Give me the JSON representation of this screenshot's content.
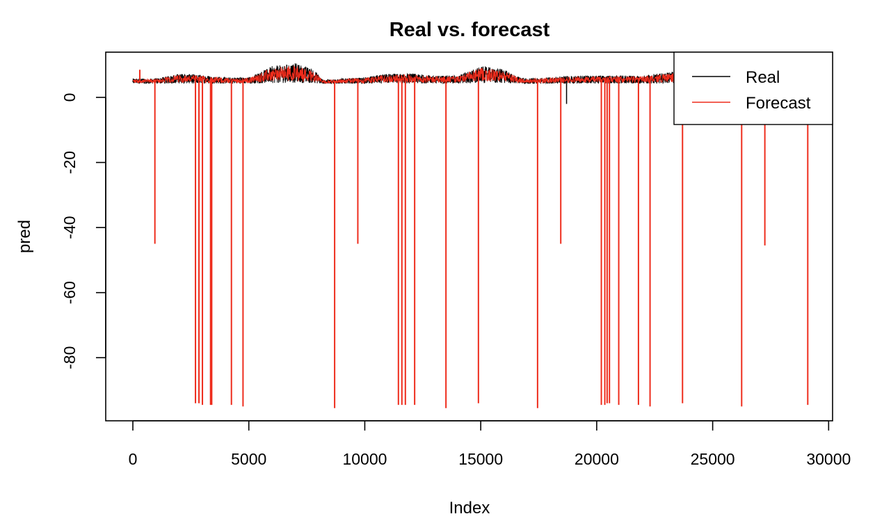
{
  "chart_data": {
    "type": "line",
    "title": "Real vs. forecast",
    "xlabel": "Index",
    "ylabel": "pred",
    "xlim": [
      -1170,
      30170
    ],
    "ylim": [
      -99.4,
      13.9
    ],
    "x_ticks": [
      0,
      5000,
      10000,
      15000,
      20000,
      25000,
      30000
    ],
    "x_tick_labels": [
      "0",
      "5000",
      "10000",
      "15000",
      "20000",
      "25000",
      "30000"
    ],
    "y_ticks": [
      0,
      -20,
      -40,
      -60,
      -80
    ],
    "y_tick_labels": [
      "0",
      "-20",
      "-40",
      "-60",
      "-80"
    ],
    "grid": false,
    "legend": {
      "position": "top-right",
      "entries": [
        "Real",
        "Forecast"
      ]
    },
    "series": [
      {
        "name": "Real",
        "color": "#000000",
        "x_start": 0,
        "x_end": 29100,
        "baseline_profile": [
          [
            0,
            5.0
          ],
          [
            1000,
            5.0
          ],
          [
            2000,
            5.8
          ],
          [
            3000,
            5.6
          ],
          [
            4000,
            5.2
          ],
          [
            5000,
            5.2
          ],
          [
            6000,
            7.0
          ],
          [
            7000,
            7.5
          ],
          [
            7800,
            6.5
          ],
          [
            8200,
            4.8
          ],
          [
            9000,
            5.0
          ],
          [
            10000,
            5.2
          ],
          [
            11000,
            5.8
          ],
          [
            12000,
            5.8
          ],
          [
            13000,
            5.5
          ],
          [
            14000,
            5.5
          ],
          [
            15000,
            7.0
          ],
          [
            16000,
            6.5
          ],
          [
            16500,
            5.5
          ],
          [
            17000,
            5.0
          ],
          [
            18000,
            5.2
          ],
          [
            19000,
            5.5
          ],
          [
            20000,
            5.5
          ],
          [
            21000,
            5.5
          ],
          [
            22000,
            5.5
          ],
          [
            23000,
            6.0
          ],
          [
            24000,
            6.5
          ],
          [
            25000,
            6.0
          ],
          [
            26000,
            5.5
          ],
          [
            27000,
            5.5
          ],
          [
            28000,
            5.5
          ],
          [
            29100,
            5.5
          ]
        ],
        "outliers": [
          {
            "x": 18700,
            "y": -2
          }
        ]
      },
      {
        "name": "Forecast",
        "color": "#ee2c1c",
        "spikes": [
          {
            "x": 950,
            "y": -45
          },
          {
            "x": 2700,
            "y": -94
          },
          {
            "x": 2850,
            "y": -94
          },
          {
            "x": 3000,
            "y": -94.5
          },
          {
            "x": 3350,
            "y": -94.5
          },
          {
            "x": 3400,
            "y": -94.5
          },
          {
            "x": 4250,
            "y": -94.5
          },
          {
            "x": 4750,
            "y": -95
          },
          {
            "x": 8700,
            "y": -95.5
          },
          {
            "x": 9700,
            "y": -45
          },
          {
            "x": 11450,
            "y": -94.5
          },
          {
            "x": 11600,
            "y": -94.5
          },
          {
            "x": 11750,
            "y": -94.5
          },
          {
            "x": 12150,
            "y": -94.5
          },
          {
            "x": 13500,
            "y": -95.5
          },
          {
            "x": 14900,
            "y": -94
          },
          {
            "x": 17450,
            "y": -95.5
          },
          {
            "x": 18450,
            "y": -45
          },
          {
            "x": 20200,
            "y": -94.5
          },
          {
            "x": 20350,
            "y": -94.5
          },
          {
            "x": 20450,
            "y": -94
          },
          {
            "x": 20550,
            "y": -94
          },
          {
            "x": 20950,
            "y": -94.5
          },
          {
            "x": 21800,
            "y": -94.5
          },
          {
            "x": 22300,
            "y": -95
          },
          {
            "x": 23700,
            "y": -94
          },
          {
            "x": 26250,
            "y": -95
          },
          {
            "x": 27250,
            "y": -45.5
          },
          {
            "x": 29100,
            "y": -94.5
          }
        ],
        "upward_spikes": [
          {
            "x": 300,
            "y": 8.5
          }
        ]
      }
    ]
  }
}
